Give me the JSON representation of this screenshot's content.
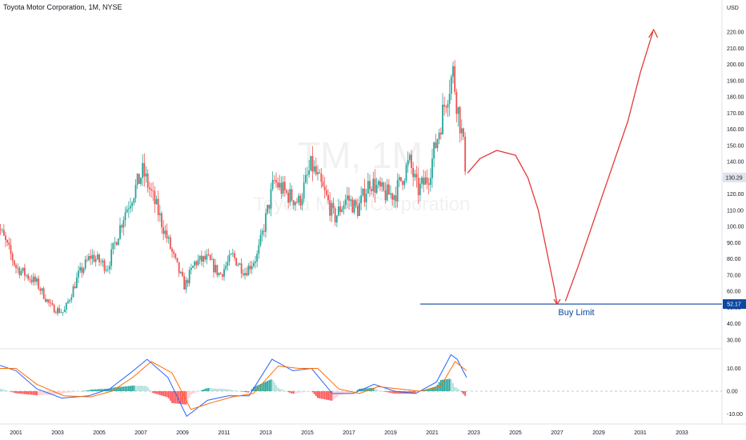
{
  "header": {
    "title": "Toyota Motor Corporation, 1M, NYSE"
  },
  "watermark": {
    "ticker": "TM, 1M",
    "name": "Toyota Motor Corporation"
  },
  "price_axis": {
    "unit": "USD",
    "ticks": [
      30,
      40,
      50,
      60,
      70,
      80,
      90,
      100,
      110,
      120,
      130,
      140,
      150,
      160,
      170,
      180,
      190,
      200,
      210,
      220
    ]
  },
  "osc_axis": {
    "ticks": [
      "10.00",
      "0.00",
      "-10.00"
    ]
  },
  "time_axis": {
    "labels": [
      "2001",
      "2003",
      "2005",
      "2007",
      "2009",
      "2011",
      "2013",
      "2015",
      "2017",
      "2019",
      "2021",
      "2023",
      "2025",
      "2027",
      "2029",
      "2031",
      "2033"
    ]
  },
  "last_price": {
    "value": "130.29"
  },
  "buy_limit": {
    "value": "52.17",
    "label": "Buy Limit"
  },
  "colors": {
    "up": "#26a69a",
    "down": "#ef5350",
    "macd": "#2962ff",
    "signal": "#ff6d00",
    "drawing": "#e53935",
    "limit": "#0d47a1"
  },
  "chart_data": [
    {
      "type": "candlestick",
      "interval": "1M",
      "ylim": [
        25,
        225
      ],
      "xlim": [
        2000,
        2034
      ],
      "key_points": [
        {
          "t": 2000.0,
          "close": 105
        },
        {
          "t": 2001.0,
          "close": 75
        },
        {
          "t": 2002.0,
          "close": 65
        },
        {
          "t": 2002.7,
          "close": 50
        },
        {
          "t": 2003.3,
          "close": 47
        },
        {
          "t": 2004.0,
          "close": 70
        },
        {
          "t": 2004.6,
          "close": 82
        },
        {
          "t": 2005.4,
          "close": 75
        },
        {
          "t": 2006.2,
          "close": 108
        },
        {
          "t": 2007.1,
          "close": 134
        },
        {
          "t": 2007.8,
          "close": 110
        },
        {
          "t": 2008.6,
          "close": 80
        },
        {
          "t": 2009.1,
          "close": 63
        },
        {
          "t": 2009.6,
          "close": 78
        },
        {
          "t": 2010.2,
          "close": 80
        },
        {
          "t": 2010.8,
          "close": 70
        },
        {
          "t": 2011.4,
          "close": 82
        },
        {
          "t": 2012.0,
          "close": 72
        },
        {
          "t": 2012.6,
          "close": 82
        },
        {
          "t": 2013.0,
          "close": 105
        },
        {
          "t": 2013.4,
          "close": 128
        },
        {
          "t": 2014.0,
          "close": 120
        },
        {
          "t": 2014.6,
          "close": 115
        },
        {
          "t": 2015.2,
          "close": 138
        },
        {
          "t": 2015.9,
          "close": 118
        },
        {
          "t": 2016.3,
          "close": 105
        },
        {
          "t": 2016.9,
          "close": 118
        },
        {
          "t": 2017.4,
          "close": 110
        },
        {
          "t": 2018.0,
          "close": 128
        },
        {
          "t": 2018.7,
          "close": 120
        },
        {
          "t": 2019.2,
          "close": 120
        },
        {
          "t": 2019.9,
          "close": 140
        },
        {
          "t": 2020.3,
          "close": 122
        },
        {
          "t": 2020.8,
          "close": 130
        },
        {
          "t": 2021.3,
          "close": 158
        },
        {
          "t": 2021.7,
          "close": 182
        },
        {
          "t": 2022.0,
          "close": 195
        },
        {
          "t": 2022.2,
          "close": 175
        },
        {
          "t": 2022.45,
          "close": 155
        },
        {
          "t": 2022.65,
          "close": 130.29
        }
      ]
    },
    {
      "type": "line",
      "name": "",
      "ylim": [
        -12,
        16
      ],
      "series": [
        {
          "name": "",
          "x": [
            2000.0,
            2001.0,
            2002.0,
            2003.2,
            2004.5,
            2005.5,
            2006.5,
            2007.3,
            2008.3,
            2009.2,
            2010.2,
            2011.2,
            2012.2,
            2013.3,
            2014.3,
            2015.2,
            2016.2,
            2017.2,
            2018.2,
            2019.2,
            2020.2,
            2021.2,
            2021.9,
            2022.2,
            2022.65
          ],
          "y": [
            12.0,
            9.0,
            1.0,
            -3.0,
            -2.0,
            1.0,
            8.0,
            14.0,
            6.0,
            -11.0,
            -4.0,
            -2.0,
            -2.0,
            14.0,
            9.0,
            10.0,
            -1.0,
            -1.0,
            3.0,
            0.0,
            -1.0,
            4.0,
            16.0,
            14.0,
            6.0
          ]
        },
        {
          "name": "",
          "x": [
            2000.0,
            2001.0,
            2002.0,
            2003.3,
            2004.6,
            2005.6,
            2006.6,
            2007.5,
            2008.5,
            2009.4,
            2010.4,
            2011.4,
            2012.4,
            2013.6,
            2014.6,
            2015.5,
            2016.5,
            2017.5,
            2018.4,
            2019.4,
            2020.4,
            2021.4,
            2022.1,
            2022.65
          ],
          "y": [
            10.0,
            10.0,
            3.0,
            -2.0,
            -2.5,
            0.0,
            6.0,
            13.0,
            8.0,
            -8.0,
            -5.0,
            -2.5,
            -1.0,
            11.0,
            10.0,
            10.0,
            1.0,
            -1.0,
            2.0,
            1.0,
            0.0,
            2.0,
            13.0,
            9.0
          ]
        }
      ]
    }
  ]
}
